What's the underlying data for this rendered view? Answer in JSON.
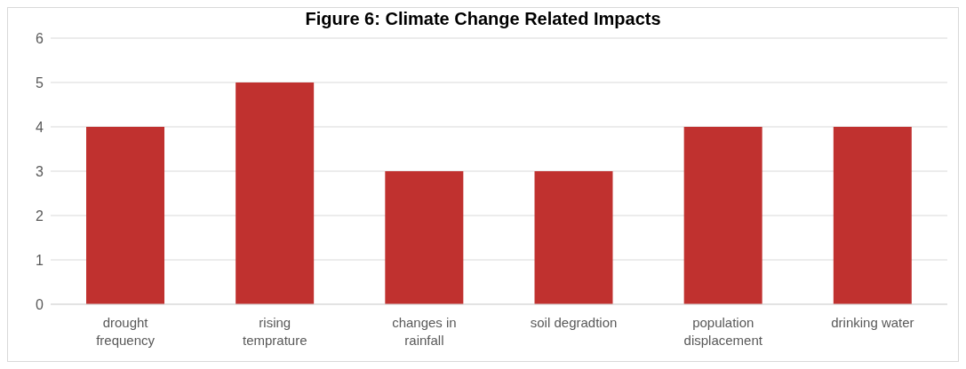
{
  "chart_data": {
    "type": "bar",
    "title": "Figure 6: Climate Change Related Impacts",
    "categories": [
      "drought frequency",
      "rising temprature",
      "changes in rainfall",
      "soil degradtion",
      "population displacement",
      "drinking water"
    ],
    "values": [
      4,
      5,
      3,
      3,
      4,
      4
    ],
    "color": "#c0312f",
    "ylim": [
      0,
      6
    ],
    "yticks": [
      0,
      1,
      2,
      3,
      4,
      5,
      6
    ],
    "grid": "y"
  }
}
